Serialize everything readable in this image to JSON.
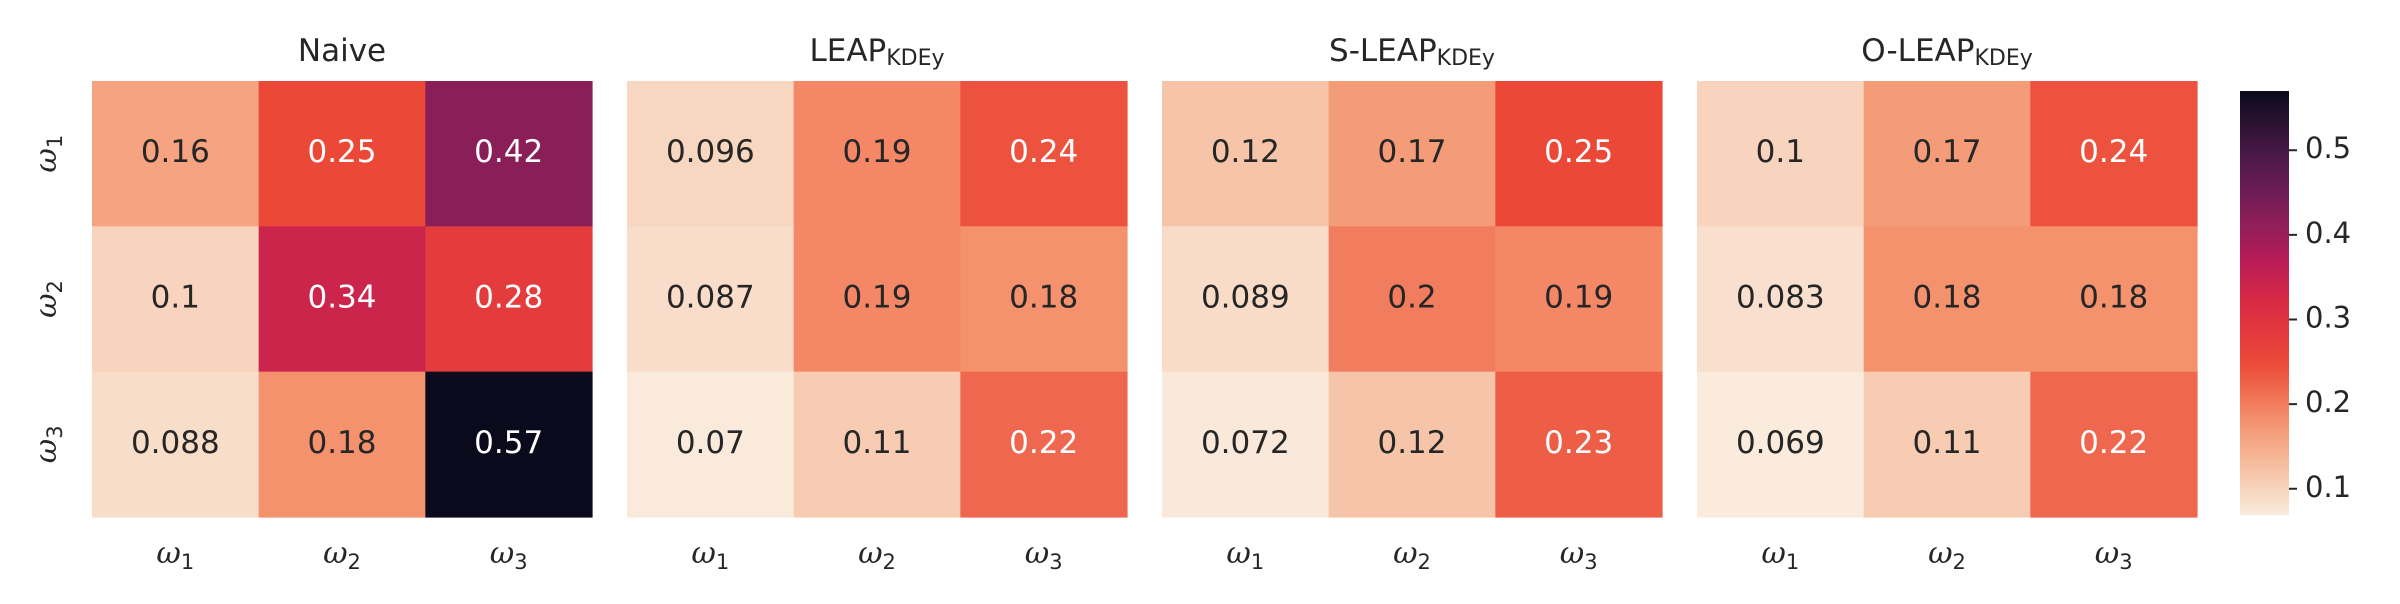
{
  "chart_data": {
    "type": "heatmap",
    "colorbar": {
      "ticks": [
        0.1,
        0.2,
        0.3,
        0.4,
        0.5
      ],
      "min": 0.069,
      "max": 0.57
    },
    "panels": [
      {
        "title": "Naive",
        "title_sub": "",
        "rows": [
          "ω1",
          "ω2",
          "ω3"
        ],
        "cols": [
          "ω1",
          "ω2",
          "ω3"
        ],
        "values": [
          [
            0.16,
            0.25,
            0.42
          ],
          [
            0.1,
            0.34,
            0.28
          ],
          [
            0.088,
            0.18,
            0.57
          ]
        ],
        "labels": [
          [
            "0.16",
            "0.25",
            "0.42"
          ],
          [
            "0.1",
            "0.34",
            "0.28"
          ],
          [
            "0.088",
            "0.18",
            "0.57"
          ]
        ]
      },
      {
        "title": "LEAP",
        "title_sub": "KDEy",
        "rows": [
          "ω1",
          "ω2",
          "ω3"
        ],
        "cols": [
          "ω1",
          "ω2",
          "ω3"
        ],
        "values": [
          [
            0.096,
            0.19,
            0.24
          ],
          [
            0.087,
            0.19,
            0.18
          ],
          [
            0.07,
            0.11,
            0.22
          ]
        ],
        "labels": [
          [
            "0.096",
            "0.19",
            "0.24"
          ],
          [
            "0.087",
            "0.19",
            "0.18"
          ],
          [
            "0.07",
            "0.11",
            "0.22"
          ]
        ]
      },
      {
        "title": "S-LEAP",
        "title_sub": "KDEy",
        "rows": [
          "ω1",
          "ω2",
          "ω3"
        ],
        "cols": [
          "ω1",
          "ω2",
          "ω3"
        ],
        "values": [
          [
            0.12,
            0.17,
            0.25
          ],
          [
            0.089,
            0.2,
            0.19
          ],
          [
            0.072,
            0.12,
            0.23
          ]
        ],
        "labels": [
          [
            "0.12",
            "0.17",
            "0.25"
          ],
          [
            "0.089",
            "0.2",
            "0.19"
          ],
          [
            "0.072",
            "0.12",
            "0.23"
          ]
        ]
      },
      {
        "title": "O-LEAP",
        "title_sub": "KDEy",
        "rows": [
          "ω1",
          "ω2",
          "ω3"
        ],
        "cols": [
          "ω1",
          "ω2",
          "ω3"
        ],
        "values": [
          [
            0.1,
            0.17,
            0.24
          ],
          [
            0.083,
            0.18,
            0.18
          ],
          [
            0.069,
            0.11,
            0.22
          ]
        ],
        "labels": [
          [
            "0.1",
            "0.17",
            "0.24"
          ],
          [
            "0.083",
            "0.18",
            "0.18"
          ],
          [
            "0.069",
            "0.11",
            "0.22"
          ]
        ]
      }
    ]
  }
}
